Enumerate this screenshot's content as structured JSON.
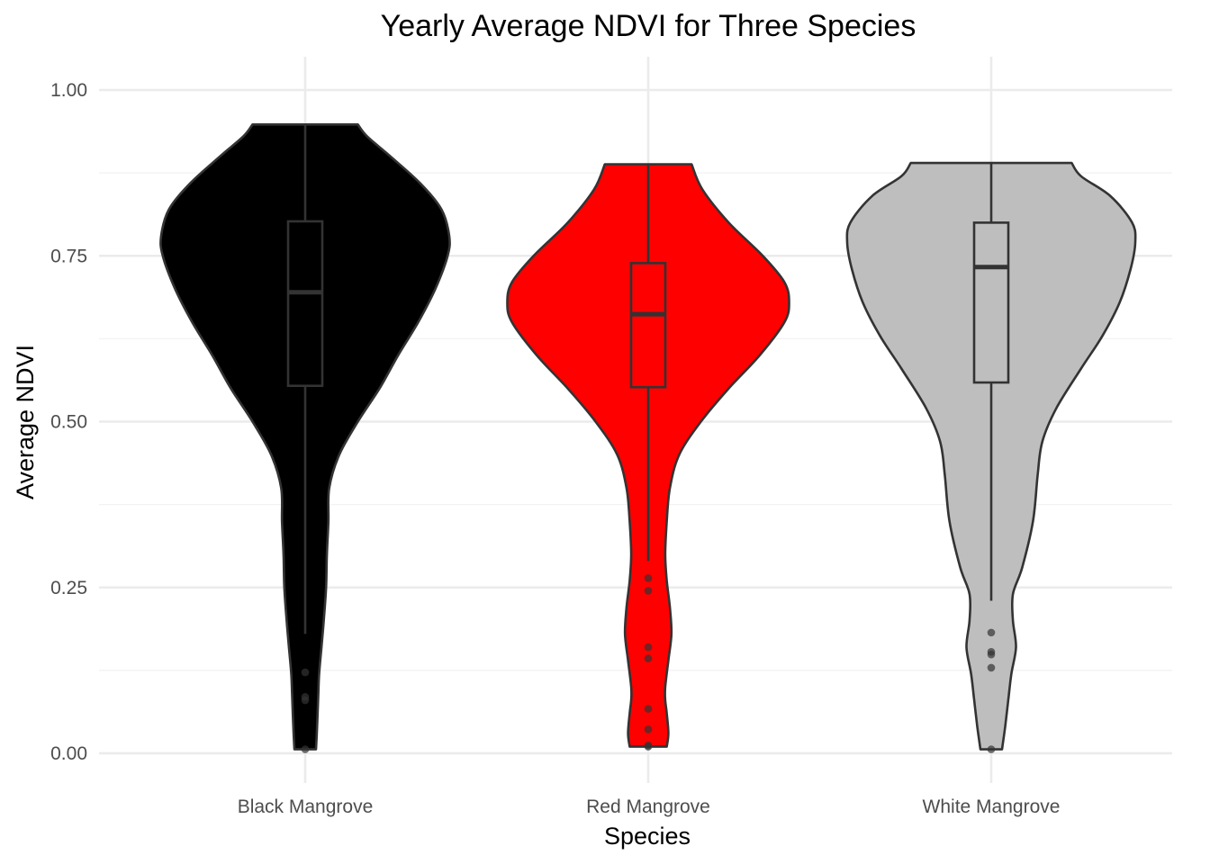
{
  "chart_data": {
    "type": "violin",
    "title": "Yearly Average NDVI for Three Species",
    "xlabel": "Species",
    "ylabel": "Average NDVI",
    "ylim": [
      -0.04,
      1.05
    ],
    "yticks": [
      0.0,
      0.25,
      0.5,
      0.75,
      1.0
    ],
    "ytick_labels": [
      "0.00",
      "0.25",
      "0.50",
      "0.75",
      "1.00"
    ],
    "y_minor_ticks": [
      0.125,
      0.375,
      0.625,
      0.875
    ],
    "categories": [
      "Black Mangrove",
      "Red Mangrove",
      "White Mangrove"
    ],
    "grid": true,
    "legend": "none",
    "series": [
      {
        "category": "Black Mangrove",
        "fill": "#000000",
        "box": {
          "min": 0.18,
          "q1": 0.554,
          "median": 0.695,
          "q3": 0.802,
          "max": 0.948
        },
        "outliers": [
          0.122,
          0.085,
          0.08,
          0.006
        ],
        "density": [
          [
            0.006,
            0.07
          ],
          [
            0.03,
            0.075
          ],
          [
            0.06,
            0.08
          ],
          [
            0.09,
            0.085
          ],
          [
            0.12,
            0.09
          ],
          [
            0.16,
            0.105
          ],
          [
            0.2,
            0.12
          ],
          [
            0.25,
            0.135
          ],
          [
            0.3,
            0.14
          ],
          [
            0.35,
            0.15
          ],
          [
            0.4,
            0.155
          ],
          [
            0.45,
            0.22
          ],
          [
            0.5,
            0.34
          ],
          [
            0.55,
            0.48
          ],
          [
            0.6,
            0.6
          ],
          [
            0.65,
            0.73
          ],
          [
            0.7,
            0.84
          ],
          [
            0.75,
            0.92
          ],
          [
            0.78,
            0.93
          ],
          [
            0.82,
            0.88
          ],
          [
            0.86,
            0.74
          ],
          [
            0.9,
            0.55
          ],
          [
            0.93,
            0.4
          ],
          [
            0.948,
            0.34
          ]
        ]
      },
      {
        "category": "Red Mangrove",
        "fill": "#ff0000",
        "box": {
          "min": 0.29,
          "q1": 0.552,
          "median": 0.662,
          "q3": 0.739,
          "max": 0.888
        },
        "outliers": [
          0.264,
          0.245,
          0.16,
          0.143,
          0.067,
          0.036,
          0.012,
          0.01
        ],
        "density": [
          [
            0.01,
            0.12
          ],
          [
            0.03,
            0.13
          ],
          [
            0.06,
            0.12
          ],
          [
            0.08,
            0.11
          ],
          [
            0.1,
            0.11
          ],
          [
            0.14,
            0.13
          ],
          [
            0.18,
            0.15
          ],
          [
            0.22,
            0.14
          ],
          [
            0.26,
            0.12
          ],
          [
            0.3,
            0.11
          ],
          [
            0.35,
            0.12
          ],
          [
            0.4,
            0.14
          ],
          [
            0.45,
            0.2
          ],
          [
            0.5,
            0.34
          ],
          [
            0.55,
            0.52
          ],
          [
            0.6,
            0.72
          ],
          [
            0.65,
            0.88
          ],
          [
            0.68,
            0.91
          ],
          [
            0.71,
            0.88
          ],
          [
            0.75,
            0.74
          ],
          [
            0.8,
            0.52
          ],
          [
            0.85,
            0.35
          ],
          [
            0.888,
            0.28
          ]
        ]
      },
      {
        "category": "White Mangrove",
        "fill": "#bebebe",
        "box": {
          "min": 0.23,
          "q1": 0.559,
          "median": 0.733,
          "q3": 0.8,
          "max": 0.89
        },
        "outliers": [
          0.182,
          0.153,
          0.149,
          0.129,
          0.006
        ],
        "density": [
          [
            0.006,
            0.07
          ],
          [
            0.04,
            0.09
          ],
          [
            0.08,
            0.11
          ],
          [
            0.12,
            0.13
          ],
          [
            0.16,
            0.16
          ],
          [
            0.2,
            0.14
          ],
          [
            0.24,
            0.14
          ],
          [
            0.28,
            0.2
          ],
          [
            0.35,
            0.27
          ],
          [
            0.42,
            0.3
          ],
          [
            0.47,
            0.33
          ],
          [
            0.52,
            0.42
          ],
          [
            0.58,
            0.58
          ],
          [
            0.63,
            0.72
          ],
          [
            0.68,
            0.83
          ],
          [
            0.73,
            0.9
          ],
          [
            0.77,
            0.93
          ],
          [
            0.8,
            0.91
          ],
          [
            0.84,
            0.77
          ],
          [
            0.87,
            0.58
          ],
          [
            0.89,
            0.52
          ]
        ]
      }
    ]
  }
}
